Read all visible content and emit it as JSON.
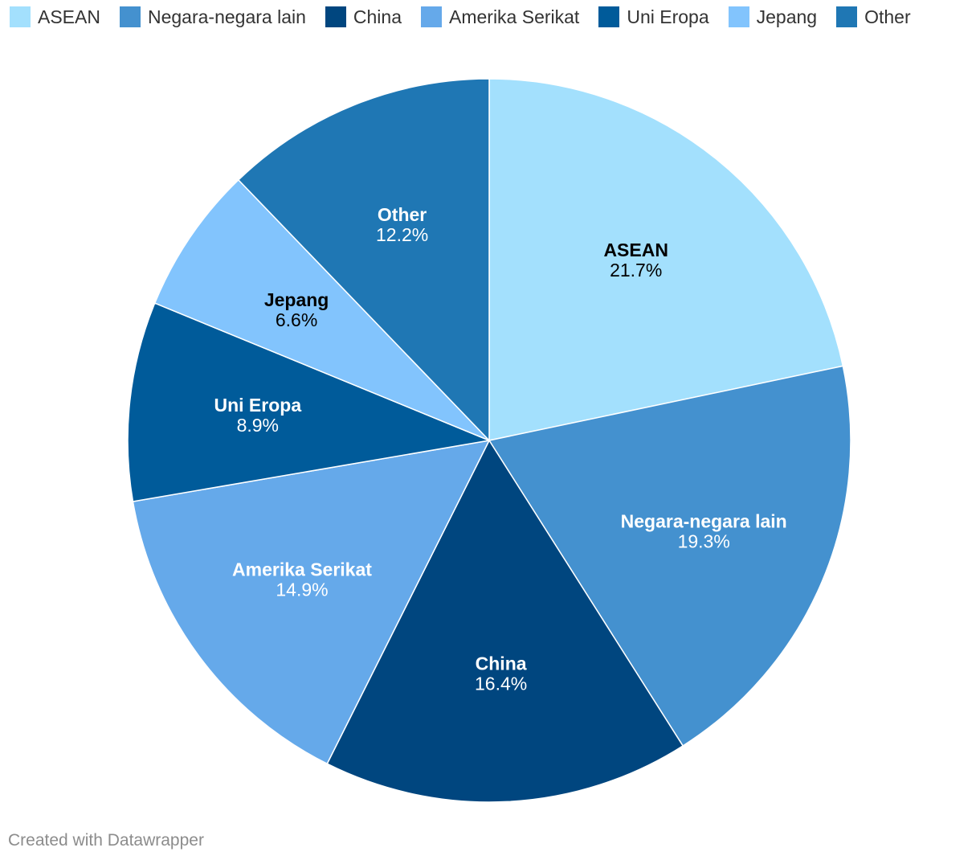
{
  "chart_data": {
    "type": "pie",
    "slices": [
      {
        "label": "ASEAN",
        "value": 21.7,
        "value_label": "21.7%",
        "color": "#a3e0fd",
        "label_color": "#000000"
      },
      {
        "label": "Negara-negara lain",
        "value": 19.3,
        "value_label": "19.3%",
        "color": "#4491cf",
        "label_color": "#ffffff"
      },
      {
        "label": "China",
        "value": 16.4,
        "value_label": "16.4%",
        "color": "#00467f",
        "label_color": "#ffffff"
      },
      {
        "label": "Amerika Serikat",
        "value": 14.9,
        "value_label": "14.9%",
        "color": "#65a9ea",
        "label_color": "#ffffff"
      },
      {
        "label": "Uni Eropa",
        "value": 8.9,
        "value_label": "8.9%",
        "color": "#005b9a",
        "label_color": "#ffffff"
      },
      {
        "label": "Jepang",
        "value": 6.6,
        "value_label": "6.6%",
        "color": "#82c4fd",
        "label_color": "#000000"
      },
      {
        "label": "Other",
        "value": 12.2,
        "value_label": "12.2%",
        "color": "#1f77b4",
        "label_color": "#ffffff"
      }
    ],
    "legend_position": "top"
  },
  "footer": {
    "credit": "Created with Datawrapper"
  }
}
